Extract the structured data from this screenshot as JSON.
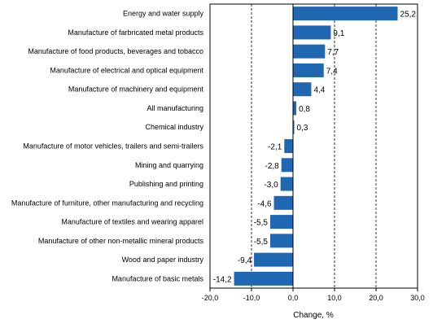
{
  "chart_data": {
    "type": "bar",
    "orientation": "horizontal",
    "categories": [
      "Energy and water supply",
      "Manufacture of farbricated metal products",
      "Manufacture of food products, beverages and tobacco",
      "Manufacture of electrical and optical equipment",
      "Manufacture of machinery and equipment",
      "All manufacturing",
      "Chemical industry",
      "Manufacture of motor vehicles, trailers and semi-trailers",
      "Mining and quarrying",
      "Publishing and printing",
      "Manufacture of furniture, other manufacturing and recycling",
      "Manufacture of textiles and wearing apparel",
      "Manufacture of other non-metallic mineral products",
      "Wood and paper industry",
      "Manufacture of basic metals"
    ],
    "values": [
      25.2,
      9.1,
      7.7,
      7.4,
      4.4,
      0.8,
      0.3,
      -2.1,
      -2.8,
      -3.0,
      -4.6,
      -5.5,
      -5.5,
      -9.4,
      -14.2
    ],
    "value_labels": [
      "25,2",
      "9,1",
      "7,7",
      "7,4",
      "4,4",
      "0,8",
      "0,3",
      "-2,1",
      "-2,8",
      "-3,0",
      "-4,6",
      "-5,5",
      "-5,5",
      "-9,4",
      "-14,2"
    ],
    "xlabel": "Change, %",
    "ylabel": "",
    "title": "",
    "xlim": [
      -20,
      30
    ],
    "xticks": [
      -20,
      -10,
      0,
      10,
      20,
      30
    ],
    "xtick_labels": [
      "-20,0",
      "-10,0",
      "0,0",
      "10,0",
      "20,0",
      "30,0"
    ],
    "gridlines_dashed": [
      -10,
      10,
      20
    ],
    "bar_color": "#1F68B1",
    "legend": "none"
  }
}
